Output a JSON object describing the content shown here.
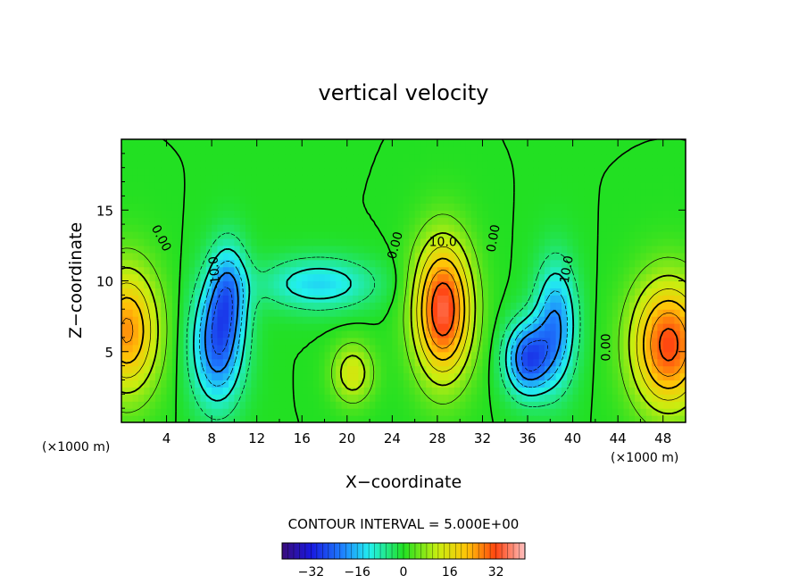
{
  "chart_data": {
    "type": "heatmap",
    "title": "vertical velocity",
    "xlabel": "X−coordinate",
    "ylabel": "Z−coordinate",
    "x_unit_left": "(×1000 m)",
    "x_unit_right": "(×1000 m)",
    "xlim": [
      0,
      50
    ],
    "ylim": [
      0,
      20
    ],
    "x_ticks": [
      4,
      8,
      12,
      16,
      20,
      24,
      28,
      32,
      36,
      40,
      44,
      48
    ],
    "x_tick_labels": [
      "4",
      "8",
      "12",
      "16",
      "20",
      "24",
      "28",
      "32",
      "36",
      "40",
      "44",
      "48"
    ],
    "y_ticks": [
      5,
      10,
      15
    ],
    "y_tick_labels": [
      "5",
      "10",
      "15"
    ],
    "contour_interval_text": "CONTOUR INTERVAL = 5.000E+00",
    "contour_labels": [
      {
        "text": "0.00",
        "x": 3.5,
        "z": 13.0,
        "rot": 62
      },
      {
        "text": "-10.0",
        "x": 8.3,
        "z": 10.6,
        "rot": -95
      },
      {
        "text": "10.0",
        "x": 28.5,
        "z": 12.7,
        "rot": 0
      },
      {
        "text": "0.00",
        "x": 24.3,
        "z": 12.5,
        "rot": -75
      },
      {
        "text": "0.00",
        "x": 33.0,
        "z": 13.0,
        "rot": -80
      },
      {
        "text": "10.0",
        "x": 39.5,
        "z": 10.8,
        "rot": -80
      },
      {
        "text": "0.00",
        "x": 43.0,
        "z": 5.3,
        "rot": -90
      }
    ],
    "colorbar": {
      "range": [
        -42,
        42
      ],
      "tick_values": [
        -32,
        -16,
        0,
        16,
        32
      ],
      "tick_labels": [
        "−32",
        "−16",
        "0",
        "16",
        "32"
      ]
    },
    "features": [
      {
        "kind": "updraft",
        "x": 0.5,
        "z": 6.5,
        "peak": 26,
        "sx": 2.0,
        "sz": 3.2
      },
      {
        "kind": "downdraft",
        "x": 8.5,
        "z": 5.5,
        "peak": -24,
        "sx": 1.6,
        "sz": 3.0
      },
      {
        "kind": "downdraft",
        "x": 9.5,
        "z": 9.5,
        "peak": -16,
        "sx": 1.2,
        "sz": 2.4
      },
      {
        "kind": "downdraft",
        "x": 17.5,
        "z": 9.8,
        "peak": -14,
        "sx": 3.5,
        "sz": 1.3
      },
      {
        "kind": "updraft",
        "x": 20.5,
        "z": 3.5,
        "peak": 14,
        "sx": 1.3,
        "sz": 1.5
      },
      {
        "kind": "updraft",
        "x": 28.5,
        "z": 8.0,
        "peak": 35,
        "sx": 1.8,
        "sz": 3.4
      },
      {
        "kind": "downdraft",
        "x": 36.0,
        "z": 4.5,
        "peak": -26,
        "sx": 1.4,
        "sz": 1.8
      },
      {
        "kind": "downdraft",
        "x": 38.5,
        "z": 7.0,
        "peak": -20,
        "sx": 1.3,
        "sz": 3.0
      },
      {
        "kind": "updraft",
        "x": 48.5,
        "z": 5.5,
        "peak": 32,
        "sx": 2.3,
        "sz": 3.2
      }
    ]
  }
}
